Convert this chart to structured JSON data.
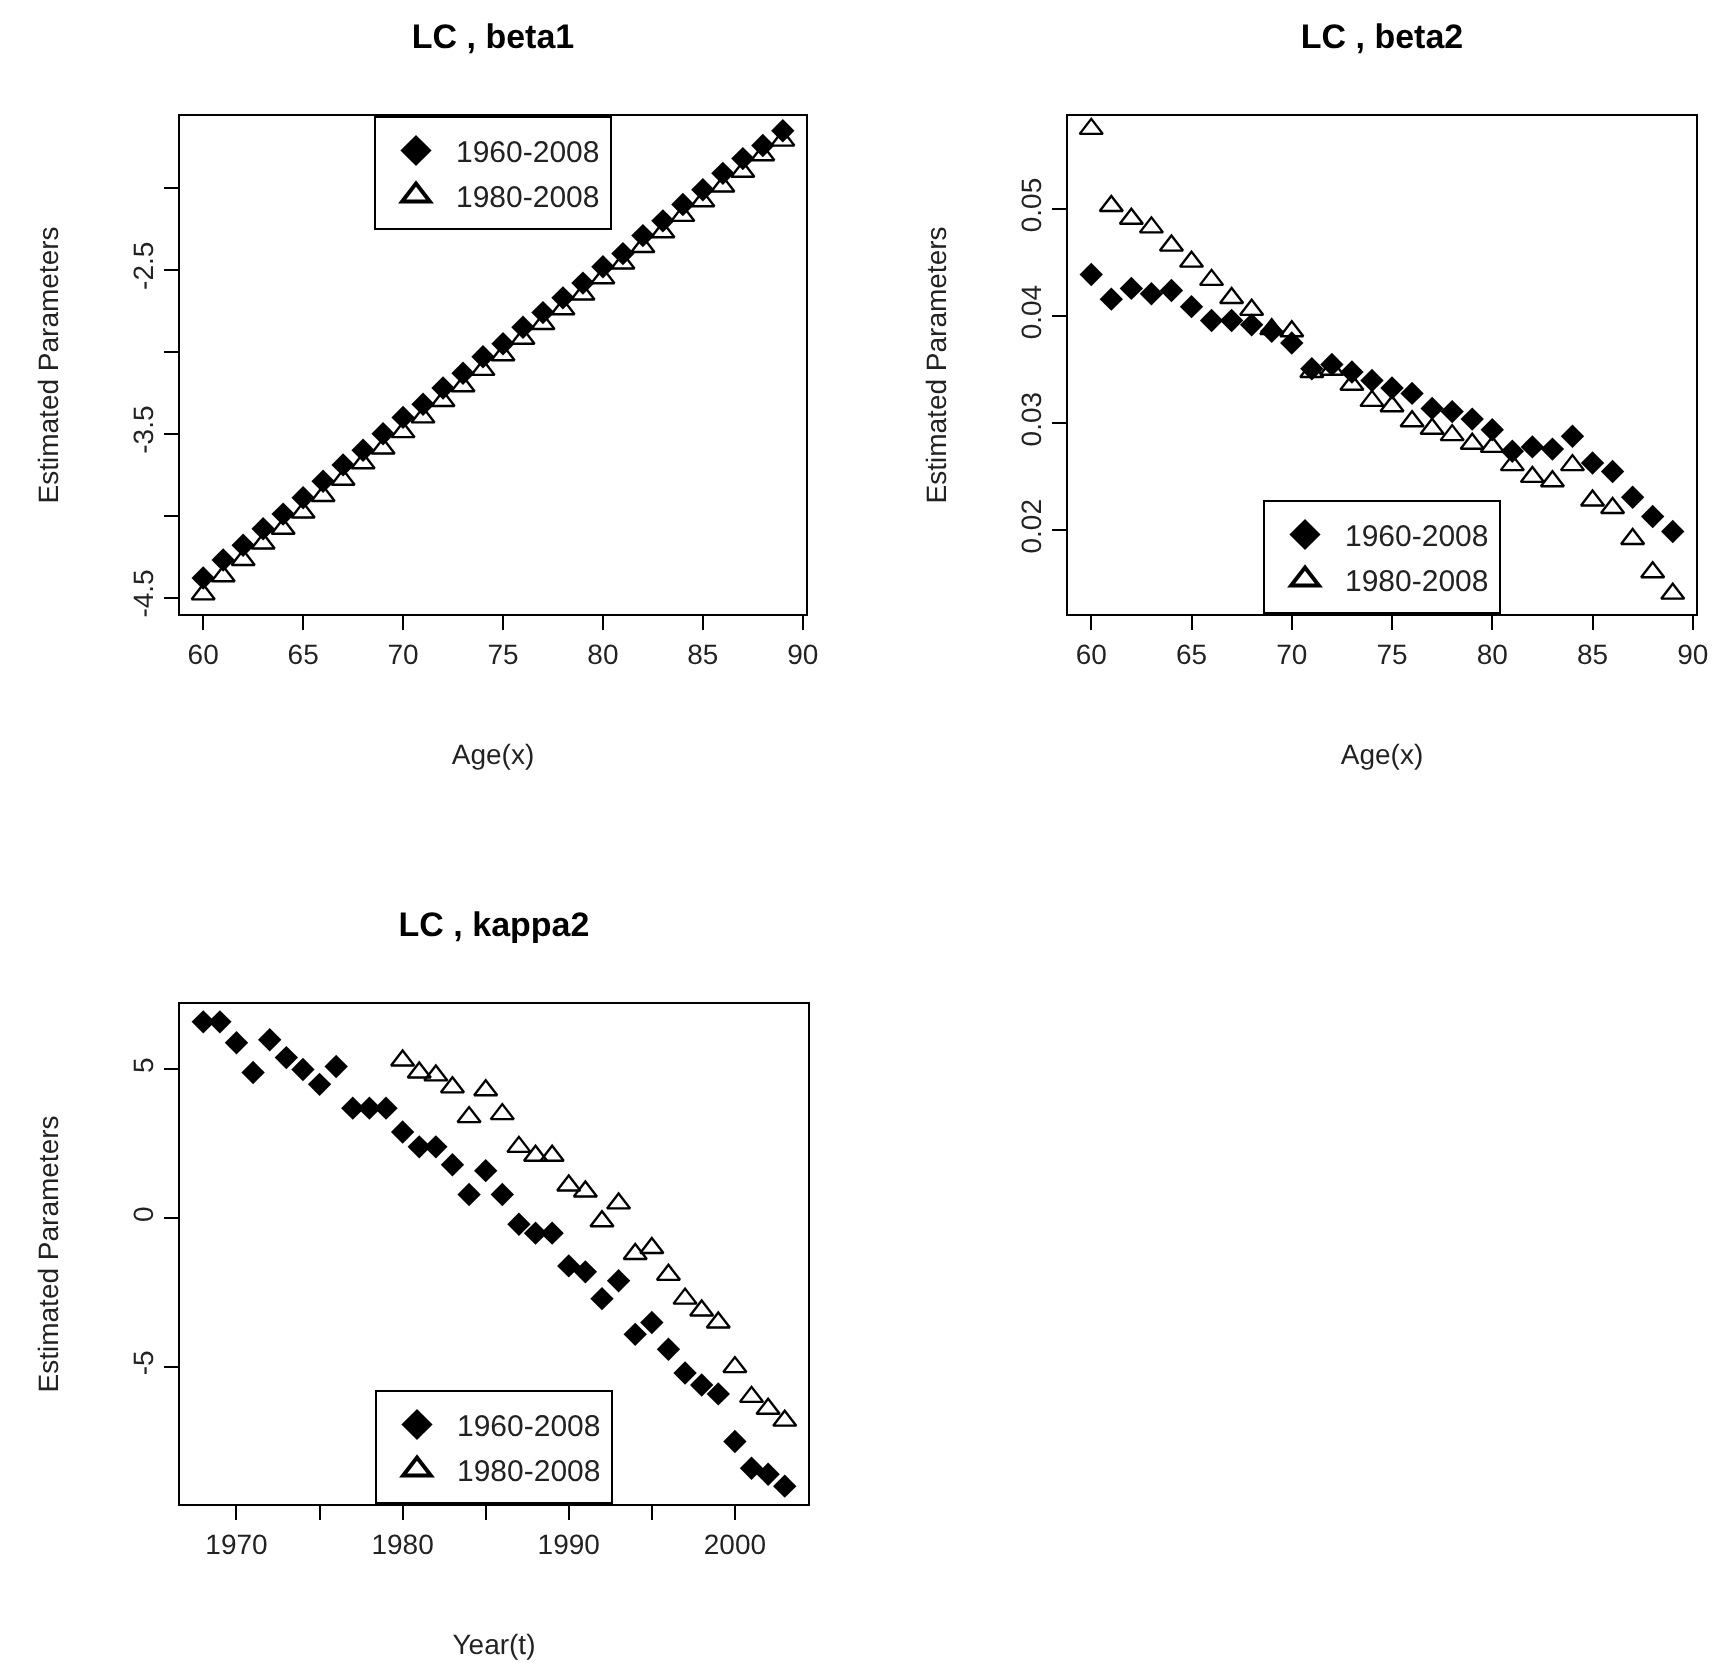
{
  "chart_data": [
    {
      "type": "scatter",
      "title": "LC , beta1",
      "xlabel": "Age(x)",
      "ylabel": "Estimated Parameters",
      "xlim": [
        58.84,
        90.16
      ],
      "xticks": [
        60,
        65,
        70,
        75,
        80,
        85,
        90
      ],
      "ylim": [
        -4.6,
        -1.56
      ],
      "yticks": [
        {
          "value": -4.5,
          "label": "-4.5"
        },
        {
          "value": -4,
          "label": null
        },
        {
          "value": -3.5,
          "label": "-3.5"
        },
        {
          "value": -3,
          "label": null
        },
        {
          "value": -2.5,
          "label": "-2.5"
        },
        {
          "value": -2,
          "label": null
        }
      ],
      "grid": false,
      "legend": "top",
      "x": [
        60,
        61,
        62,
        63,
        64,
        65,
        66,
        67,
        68,
        69,
        70,
        71,
        72,
        73,
        74,
        75,
        76,
        77,
        78,
        79,
        80,
        81,
        82,
        83,
        84,
        85,
        86,
        87,
        88,
        89
      ],
      "series": [
        {
          "name": "1960-2008",
          "color": "#000000",
          "marker": "diamond",
          "values": [
            -4.38,
            -4.27,
            -4.18,
            -4.08,
            -3.99,
            -3.89,
            -3.79,
            -3.69,
            -3.6,
            -3.5,
            -3.4,
            -3.32,
            -3.22,
            -3.13,
            -3.03,
            -2.95,
            -2.85,
            -2.76,
            -2.67,
            -2.58,
            -2.48,
            -2.4,
            -2.29,
            -2.2,
            -2.1,
            -2.01,
            -1.91,
            -1.82,
            -1.74,
            -1.65
          ]
        },
        {
          "name": "1980-2008",
          "color": "#000000",
          "marker": "triangle",
          "values": [
            -4.48,
            -4.37,
            -4.27,
            -4.17,
            -4.08,
            -3.98,
            -3.88,
            -3.78,
            -3.68,
            -3.59,
            -3.49,
            -3.4,
            -3.3,
            -3.21,
            -3.11,
            -3.02,
            -2.92,
            -2.83,
            -2.74,
            -2.65,
            -2.55,
            -2.46,
            -2.36,
            -2.27,
            -2.17,
            -2.08,
            -1.99,
            -1.9,
            -1.8,
            -1.71
          ]
        }
      ]
    },
    {
      "type": "scatter",
      "title": "LC , beta2",
      "xlabel": "Age(x)",
      "ylabel": "Estimated Parameters",
      "xlim": [
        58.84,
        90.16
      ],
      "xticks": [
        60,
        65,
        70,
        75,
        80,
        85,
        90
      ],
      "ylim": [
        0.0122,
        0.0587
      ],
      "yticks": [
        0.02,
        0.03,
        0.04,
        0.05
      ],
      "grid": false,
      "legend": "bottom",
      "x": [
        60,
        61,
        62,
        63,
        64,
        65,
        66,
        67,
        68,
        69,
        70,
        71,
        72,
        73,
        74,
        75,
        76,
        77,
        78,
        79,
        80,
        81,
        82,
        83,
        84,
        85,
        86,
        87,
        88,
        89
      ],
      "series": [
        {
          "name": "1960-2008",
          "color": "#000000",
          "marker": "diamond",
          "values": [
            0.0439,
            0.0416,
            0.0426,
            0.0421,
            0.0424,
            0.0409,
            0.0396,
            0.0396,
            0.0392,
            0.0386,
            0.0375,
            0.0351,
            0.0355,
            0.0348,
            0.034,
            0.0333,
            0.0328,
            0.0314,
            0.0311,
            0.0304,
            0.0294,
            0.0274,
            0.0278,
            0.0276,
            0.0288,
            0.0263,
            0.0255,
            0.0231,
            0.0213,
            0.0199
          ]
        },
        {
          "name": "1980-2008",
          "color": "#000000",
          "marker": "triangle",
          "values": [
            0.0575,
            0.0503,
            0.0491,
            0.0483,
            0.0466,
            0.0451,
            0.0434,
            0.0417,
            0.0406,
            0.0388,
            0.0386,
            0.0348,
            0.035,
            0.0336,
            0.0321,
            0.0316,
            0.0302,
            0.0295,
            0.0289,
            0.0281,
            0.0278,
            0.0261,
            0.025,
            0.0246,
            0.0261,
            0.0228,
            0.0221,
            0.0192,
            0.0161,
            0.0141
          ]
        }
      ]
    },
    {
      "type": "scatter",
      "title": "LC , kappa2",
      "xlabel": "Year(t)",
      "ylabel": "Estimated Parameters",
      "xlim": [
        1966.6,
        2004.4
      ],
      "xticks": [
        1970,
        {
          "value": 1975,
          "label": null
        },
        1980,
        {
          "value": 1985,
          "label": null
        },
        1990,
        {
          "value": 1995,
          "label": null
        },
        2000
      ],
      "ylim": [
        -9.6,
        7.2
      ],
      "yticks": [
        -5,
        0,
        5
      ],
      "grid": false,
      "legend": "bottom",
      "series": [
        {
          "name": "1960-2008",
          "color": "#000000",
          "marker": "diamond",
          "x": [
            1968,
            1969,
            1970,
            1971,
            1972,
            1973,
            1974,
            1975,
            1976,
            1977,
            1978,
            1979,
            1980,
            1981,
            1982,
            1983,
            1984,
            1985,
            1986,
            1987,
            1988,
            1989,
            1990,
            1991,
            1992,
            1993,
            1994,
            1995,
            1996,
            1997,
            1998,
            1999,
            2000,
            2001,
            2002,
            2003
          ],
          "values": [
            6.6,
            6.6,
            5.9,
            4.9,
            6.0,
            5.4,
            5.0,
            4.5,
            5.1,
            3.7,
            3.7,
            3.7,
            2.9,
            2.4,
            2.4,
            1.8,
            0.8,
            1.6,
            0.8,
            -0.2,
            -0.5,
            -0.5,
            -1.6,
            -1.8,
            -2.7,
            -2.1,
            -3.9,
            -3.5,
            -4.4,
            -5.2,
            -5.6,
            -5.9,
            -7.5,
            -8.4,
            -8.6,
            -9.0
          ]
        },
        {
          "name": "1980-2008",
          "color": "#000000",
          "marker": "triangle",
          "x": [
            1980,
            1981,
            1982,
            1983,
            1984,
            1985,
            1986,
            1987,
            1988,
            1989,
            1990,
            1991,
            1992,
            1993,
            1994,
            1995,
            1996,
            1997,
            1998,
            1999,
            2000,
            2001,
            2002,
            2003
          ],
          "values": [
            5.3,
            4.9,
            4.8,
            4.4,
            3.4,
            4.3,
            3.5,
            2.4,
            2.1,
            2.1,
            1.1,
            0.9,
            -0.1,
            0.5,
            -1.2,
            -1.0,
            -1.9,
            -2.7,
            -3.1,
            -3.5,
            -5.0,
            -6.0,
            -6.4,
            -6.8
          ]
        }
      ]
    }
  ]
}
